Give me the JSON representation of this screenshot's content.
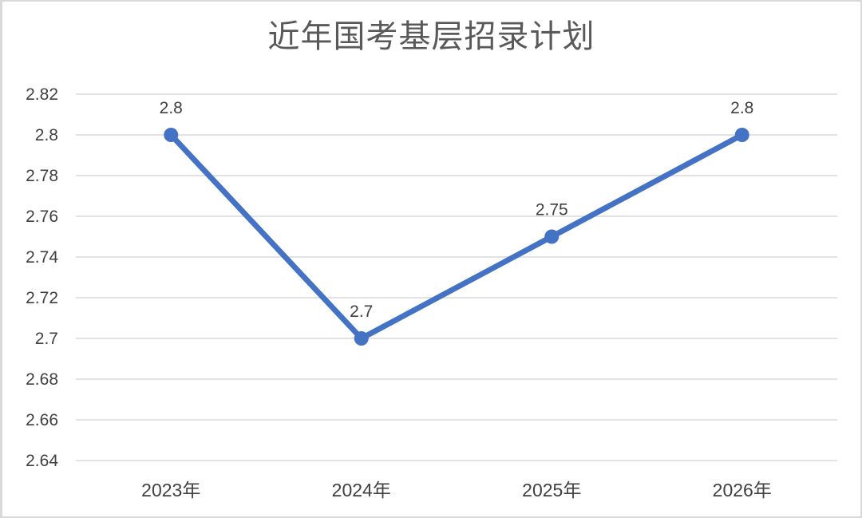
{
  "chart_data": {
    "type": "line",
    "title": "近年国考基层招录计划",
    "categories": [
      "2023年",
      "2024年",
      "2025年",
      "2026年"
    ],
    "values": [
      2.8,
      2.7,
      2.75,
      2.8
    ],
    "data_labels": [
      "2.8",
      "2.7",
      "2.75",
      "2.8"
    ],
    "xlabel": "",
    "ylabel": "",
    "ylim": [
      2.64,
      2.82
    ],
    "y_tick_step": 0.02,
    "y_ticks": [
      {
        "label": "2.82",
        "value": 2.82
      },
      {
        "label": "2.8",
        "value": 2.8
      },
      {
        "label": "2.78",
        "value": 2.78
      },
      {
        "label": "2.76",
        "value": 2.76
      },
      {
        "label": "2.74",
        "value": 2.74
      },
      {
        "label": "2.72",
        "value": 2.72
      },
      {
        "label": "2.7",
        "value": 2.7
      },
      {
        "label": "2.68",
        "value": 2.68
      },
      {
        "label": "2.66",
        "value": 2.66
      },
      {
        "label": "2.64",
        "value": 2.64
      }
    ],
    "grid": "horizontal",
    "legend": "none"
  },
  "colors": {
    "line": "#4472C4",
    "marker": "#4472C4",
    "gridline": "#D9D9D9",
    "axis_text": "#404040",
    "data_label_text": "#404040",
    "title_text": "#595959",
    "frame_border": "#D9D9D9",
    "background": "#FFFFFF"
  }
}
